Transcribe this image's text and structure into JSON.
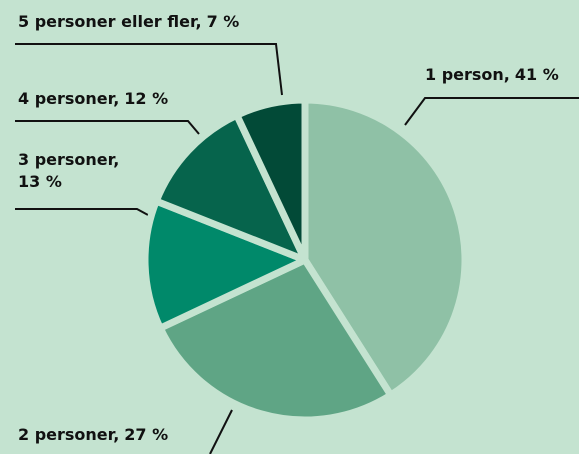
{
  "chart_data": {
    "type": "pie",
    "categories": [
      "1 person,",
      "2 personer,",
      "3 personer,",
      "4 personer,",
      "5 personer eller fler,"
    ],
    "values": [
      41,
      27,
      13,
      12,
      7
    ],
    "value_labels": [
      "41 %",
      "27 %",
      "13 %",
      "12 %",
      "7 %"
    ],
    "colors": [
      "#8fc1a6",
      "#5fa585",
      "#00896a",
      "#06644c",
      "#024a37"
    ]
  }
}
